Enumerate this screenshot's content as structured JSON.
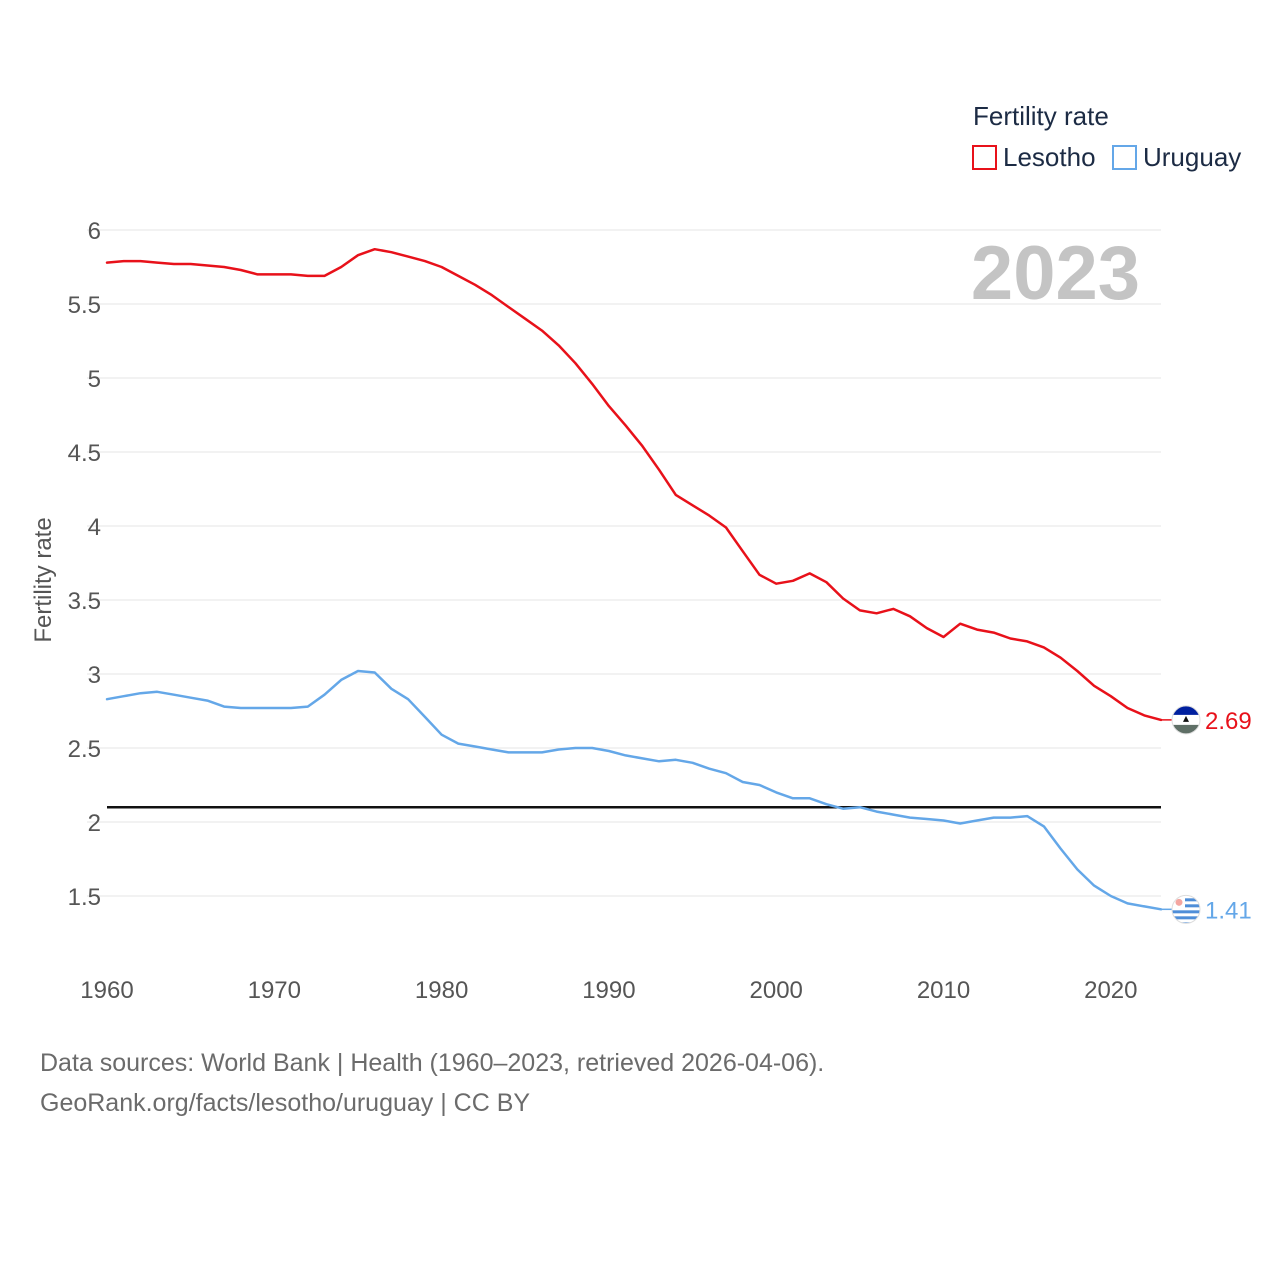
{
  "chart_data": {
    "type": "line",
    "title": "",
    "legend_title": "Fertility rate",
    "ylabel": "Fertility rate",
    "xlabel": "",
    "year_label": "2023",
    "xlim": [
      1960,
      2023
    ],
    "ylim": [
      1.0,
      6.0
    ],
    "x_ticks": [
      1960,
      1970,
      1980,
      1990,
      2000,
      2010,
      2020
    ],
    "y_ticks": [
      1.5,
      2,
      2.5,
      3,
      3.5,
      4,
      4.5,
      5,
      5.5,
      6
    ],
    "reference_line": 2.1,
    "x": [
      1960,
      1961,
      1962,
      1963,
      1964,
      1965,
      1966,
      1967,
      1968,
      1969,
      1970,
      1971,
      1972,
      1973,
      1974,
      1975,
      1976,
      1977,
      1978,
      1979,
      1980,
      1981,
      1982,
      1983,
      1984,
      1985,
      1986,
      1987,
      1988,
      1989,
      1990,
      1991,
      1992,
      1993,
      1994,
      1995,
      1996,
      1997,
      1998,
      1999,
      2000,
      2001,
      2002,
      2003,
      2004,
      2005,
      2006,
      2007,
      2008,
      2009,
      2010,
      2011,
      2012,
      2013,
      2014,
      2015,
      2016,
      2017,
      2018,
      2019,
      2020,
      2021,
      2022,
      2023
    ],
    "series": [
      {
        "name": "Lesotho",
        "color": "#e8111a",
        "end_label": "2.69",
        "flag": "lesotho-flag-icon",
        "values": [
          5.78,
          5.79,
          5.79,
          5.78,
          5.77,
          5.77,
          5.76,
          5.75,
          5.73,
          5.7,
          5.7,
          5.7,
          5.69,
          5.69,
          5.75,
          5.83,
          5.87,
          5.85,
          5.82,
          5.79,
          5.75,
          5.69,
          5.63,
          5.56,
          5.48,
          5.4,
          5.32,
          5.22,
          5.1,
          4.96,
          4.81,
          4.68,
          4.54,
          4.38,
          4.21,
          4.14,
          4.07,
          3.99,
          3.83,
          3.67,
          3.61,
          3.63,
          3.68,
          3.62,
          3.51,
          3.43,
          3.41,
          3.44,
          3.39,
          3.31,
          3.25,
          3.34,
          3.3,
          3.28,
          3.24,
          3.22,
          3.18,
          3.11,
          3.02,
          2.92,
          2.85,
          2.77,
          2.72,
          2.69
        ]
      },
      {
        "name": "Uruguay",
        "color": "#64a7e8",
        "end_label": "1.41",
        "flag": "uruguay-flag-icon",
        "values": [
          2.83,
          2.85,
          2.87,
          2.88,
          2.86,
          2.84,
          2.82,
          2.78,
          2.77,
          2.77,
          2.77,
          2.77,
          2.78,
          2.86,
          2.96,
          3.02,
          3.01,
          2.9,
          2.83,
          2.71,
          2.59,
          2.53,
          2.51,
          2.49,
          2.47,
          2.47,
          2.47,
          2.49,
          2.5,
          2.5,
          2.48,
          2.45,
          2.43,
          2.41,
          2.42,
          2.4,
          2.36,
          2.33,
          2.27,
          2.25,
          2.2,
          2.16,
          2.16,
          2.12,
          2.09,
          2.1,
          2.07,
          2.05,
          2.03,
          2.02,
          2.01,
          1.99,
          2.01,
          2.03,
          2.03,
          2.04,
          1.97,
          1.82,
          1.68,
          1.57,
          1.5,
          1.45,
          1.43,
          1.41
        ]
      }
    ]
  },
  "footer": {
    "line1": "Data sources: World Bank | Health (1960–2023, retrieved 2026-04-06).",
    "line2": "GeoRank.org/facts/lesotho/uruguay | CC BY"
  },
  "colors": {
    "gridline": "#e6e6e6",
    "reference_line": "#111111",
    "lesotho_flag_top": "#00209f",
    "lesotho_flag_bottom": "#009543",
    "uruguay_flag_stripe": "#4f8ed8",
    "uruguay_sun": "#f7c948"
  }
}
